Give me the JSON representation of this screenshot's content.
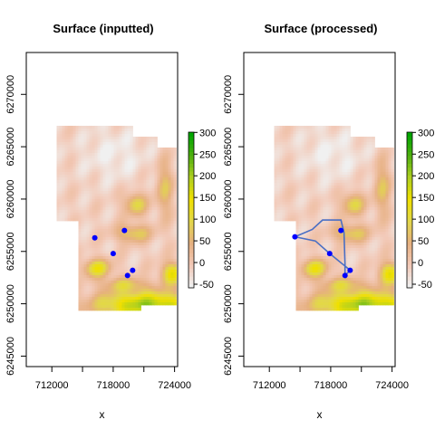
{
  "chart_data": [
    {
      "type": "heatmap",
      "title": "Surface (inputted)",
      "xlabel": "x",
      "ylabel": "",
      "xlim": [
        709500,
        724300
      ],
      "ylim": [
        6244000,
        6274000
      ],
      "x_ticks": [
        "712000",
        "718000",
        "724000"
      ],
      "y_ticks": [
        "6245000",
        "6250000",
        "6255000",
        "6260000",
        "6265000",
        "6270000"
      ],
      "legend_ticks": [
        "-50",
        "0",
        "50",
        "100",
        "150",
        "200",
        "250",
        "300"
      ],
      "legend_range": [
        -50,
        300
      ],
      "legend_placement": "right",
      "grid": false,
      "points": [
        {
          "x": 716200,
          "y": 6256300
        },
        {
          "x": 718000,
          "y": 6254800
        },
        {
          "x": 719100,
          "y": 6257000
        },
        {
          "x": 719400,
          "y": 6252700
        },
        {
          "x": 719900,
          "y": 6253200
        }
      ]
    },
    {
      "type": "heatmap",
      "title": "Surface (processed)",
      "xlabel": "x",
      "ylabel": "",
      "xlim": [
        709500,
        724300
      ],
      "ylim": [
        6244000,
        6274000
      ],
      "x_ticks": [
        "712000",
        "718000",
        "724000"
      ],
      "y_ticks": [
        "6245000",
        "6250000",
        "6255000",
        "6260000",
        "6265000",
        "6270000"
      ],
      "legend_ticks": [
        "-50",
        "0",
        "50",
        "100",
        "150",
        "200",
        "250",
        "300"
      ],
      "legend_range": [
        -50,
        300
      ],
      "legend_placement": "right",
      "grid": false,
      "points": [
        {
          "x": 714500,
          "y": 6256400
        },
        {
          "x": 717900,
          "y": 6254800
        },
        {
          "x": 719000,
          "y": 6257000
        },
        {
          "x": 719400,
          "y": 6252700
        },
        {
          "x": 719900,
          "y": 6253200
        }
      ],
      "path": [
        {
          "x": 714500,
          "y": 6256400
        },
        {
          "x": 716200,
          "y": 6257100
        },
        {
          "x": 717200,
          "y": 6258000
        },
        {
          "x": 719000,
          "y": 6258000
        },
        {
          "x": 719300,
          "y": 6256800
        },
        {
          "x": 719400,
          "y": 6253800
        },
        {
          "x": 719400,
          "y": 6252700
        },
        {
          "x": 719900,
          "y": 6253200
        },
        {
          "x": 717900,
          "y": 6254800
        },
        {
          "x": 716500,
          "y": 6256000
        },
        {
          "x": 714500,
          "y": 6256400
        }
      ]
    }
  ],
  "colors": {
    "point": "#0000ff",
    "path": "#4a6fc4",
    "colorscale": [
      "#f0f0f0",
      "#f2c8b6",
      "#e6b080",
      "#e2d84a",
      "#f0e000",
      "#b0d020",
      "#50b010",
      "#00a600"
    ]
  }
}
